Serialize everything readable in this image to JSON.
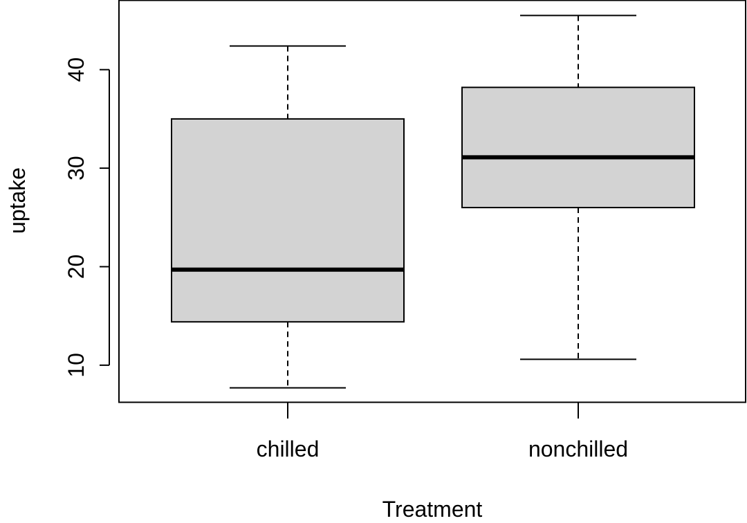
{
  "chart_data": {
    "type": "boxplot",
    "title": "",
    "xlabel": "Treatment",
    "ylabel": "uptake",
    "categories": [
      "chilled",
      "nonchilled"
    ],
    "boxes": [
      {
        "category": "chilled",
        "whisker_low": 7.7,
        "q1": 14.4,
        "median": 19.7,
        "q3": 35.0,
        "whisker_high": 42.4
      },
      {
        "category": "nonchilled",
        "whisker_low": 10.6,
        "q1": 26.0,
        "median": 31.1,
        "q3": 38.2,
        "whisker_high": 45.5
      }
    ],
    "yticks": [
      10,
      20,
      30,
      40
    ],
    "ylim": [
      6.2,
      47.0
    ],
    "grid": false,
    "legend": "none",
    "colors": {
      "box_fill": "#d3d3d3",
      "stroke": "#000000",
      "background": "#ffffff"
    }
  }
}
